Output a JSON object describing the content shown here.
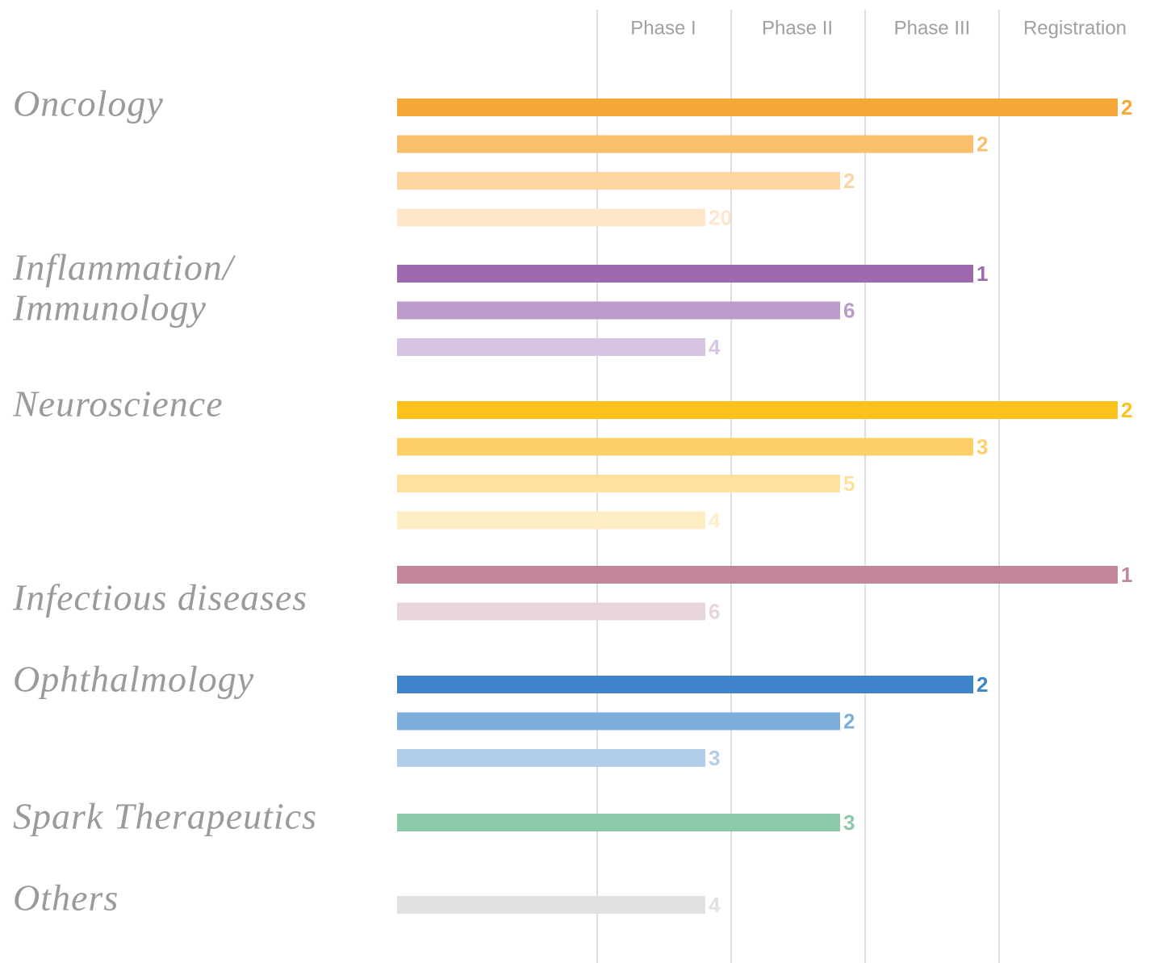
{
  "chart_data": {
    "type": "pipeline",
    "phases": [
      "Phase I",
      "Phase II",
      "Phase III",
      "Registration"
    ],
    "areas": [
      {
        "name_lines": [
          "Oncology"
        ],
        "bars": [
          {
            "stage": "Registration",
            "count": 2,
            "color": "#f5a73a"
          },
          {
            "stage": "Phase III",
            "count": 2,
            "color": "#f8bf6d"
          },
          {
            "stage": "Phase II",
            "count": 2,
            "color": "#fcd5a0"
          },
          {
            "stage": "Phase I",
            "count": 20,
            "color": "#fde6c9"
          }
        ]
      },
      {
        "name_lines": [
          "Inflammation/",
          "Immunology"
        ],
        "bars": [
          {
            "stage": "Phase III",
            "count": 1,
            "color": "#9e6aad"
          },
          {
            "stage": "Phase II",
            "count": 6,
            "color": "#bb9bca"
          },
          {
            "stage": "Phase I",
            "count": 4,
            "color": "#d6c4e2"
          }
        ]
      },
      {
        "name_lines": [
          "Neuroscience"
        ],
        "bars": [
          {
            "stage": "Registration",
            "count": 2,
            "color": "#fbc21b"
          },
          {
            "stage": "Phase III",
            "count": 3,
            "color": "#fdd067"
          },
          {
            "stage": "Phase II",
            "count": 5,
            "color": "#ffe19d"
          },
          {
            "stage": "Phase I",
            "count": 4,
            "color": "#ffedc4"
          }
        ]
      },
      {
        "name_lines": [
          "Infectious diseases"
        ],
        "bars": [
          {
            "stage": "Registration",
            "count": 1,
            "color": "#c2869b"
          },
          {
            "stage": "Phase I",
            "count": 6,
            "color": "#e8d5dc"
          }
        ]
      },
      {
        "name_lines": [
          "Ophthalmology"
        ],
        "bars": [
          {
            "stage": "Phase III",
            "count": 2,
            "color": "#3e85cb"
          },
          {
            "stage": "Phase II",
            "count": 2,
            "color": "#7dadd9"
          },
          {
            "stage": "Phase I",
            "count": 3,
            "color": "#b2cdea"
          }
        ]
      },
      {
        "name_lines": [
          "Spark Therapeutics"
        ],
        "bars": [
          {
            "stage": "Phase II",
            "count": 3,
            "color": "#8cc9aa"
          }
        ]
      },
      {
        "name_lines": [
          "Others"
        ],
        "bars": [
          {
            "stage": "Phase I",
            "count": 4,
            "color": "#e0e1e0"
          }
        ]
      }
    ]
  }
}
